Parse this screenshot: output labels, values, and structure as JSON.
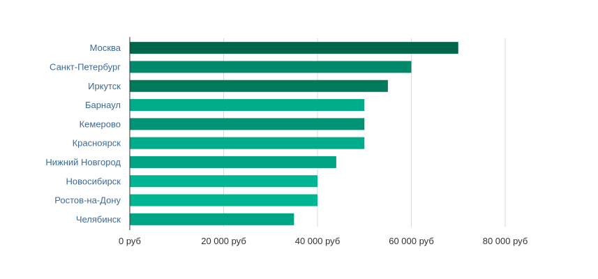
{
  "chart_data": {
    "type": "bar",
    "orientation": "horizontal",
    "categories": [
      "Москва",
      "Санкт-Петербург",
      "Иркутск",
      "Барнаул",
      "Кемерово",
      "Красноярск",
      "Нижний Новгород",
      "Новосибирск",
      "Ростов-на-Дону",
      "Челябинск"
    ],
    "values": [
      70000,
      60000,
      55000,
      50000,
      50000,
      50000,
      44000,
      40000,
      40000,
      35000
    ],
    "bar_colors": [
      "#00664a",
      "#00896a",
      "#007a5b",
      "#00ad8a",
      "#009477",
      "#00ad8a",
      "#00a383",
      "#00b591",
      "#00b591",
      "#00a383"
    ],
    "xlim": [
      0,
      80000
    ],
    "xticks": [
      0,
      20000,
      40000,
      60000,
      80000
    ],
    "xtick_labels": [
      "0 руб",
      "20 000 руб",
      "40 000 руб",
      "60 000 руб",
      "80 000 руб"
    ],
    "grid": true,
    "gridline_color": "#d9d9d9",
    "axis_color": "#333333",
    "title": "",
    "xlabel": "",
    "ylabel": ""
  }
}
